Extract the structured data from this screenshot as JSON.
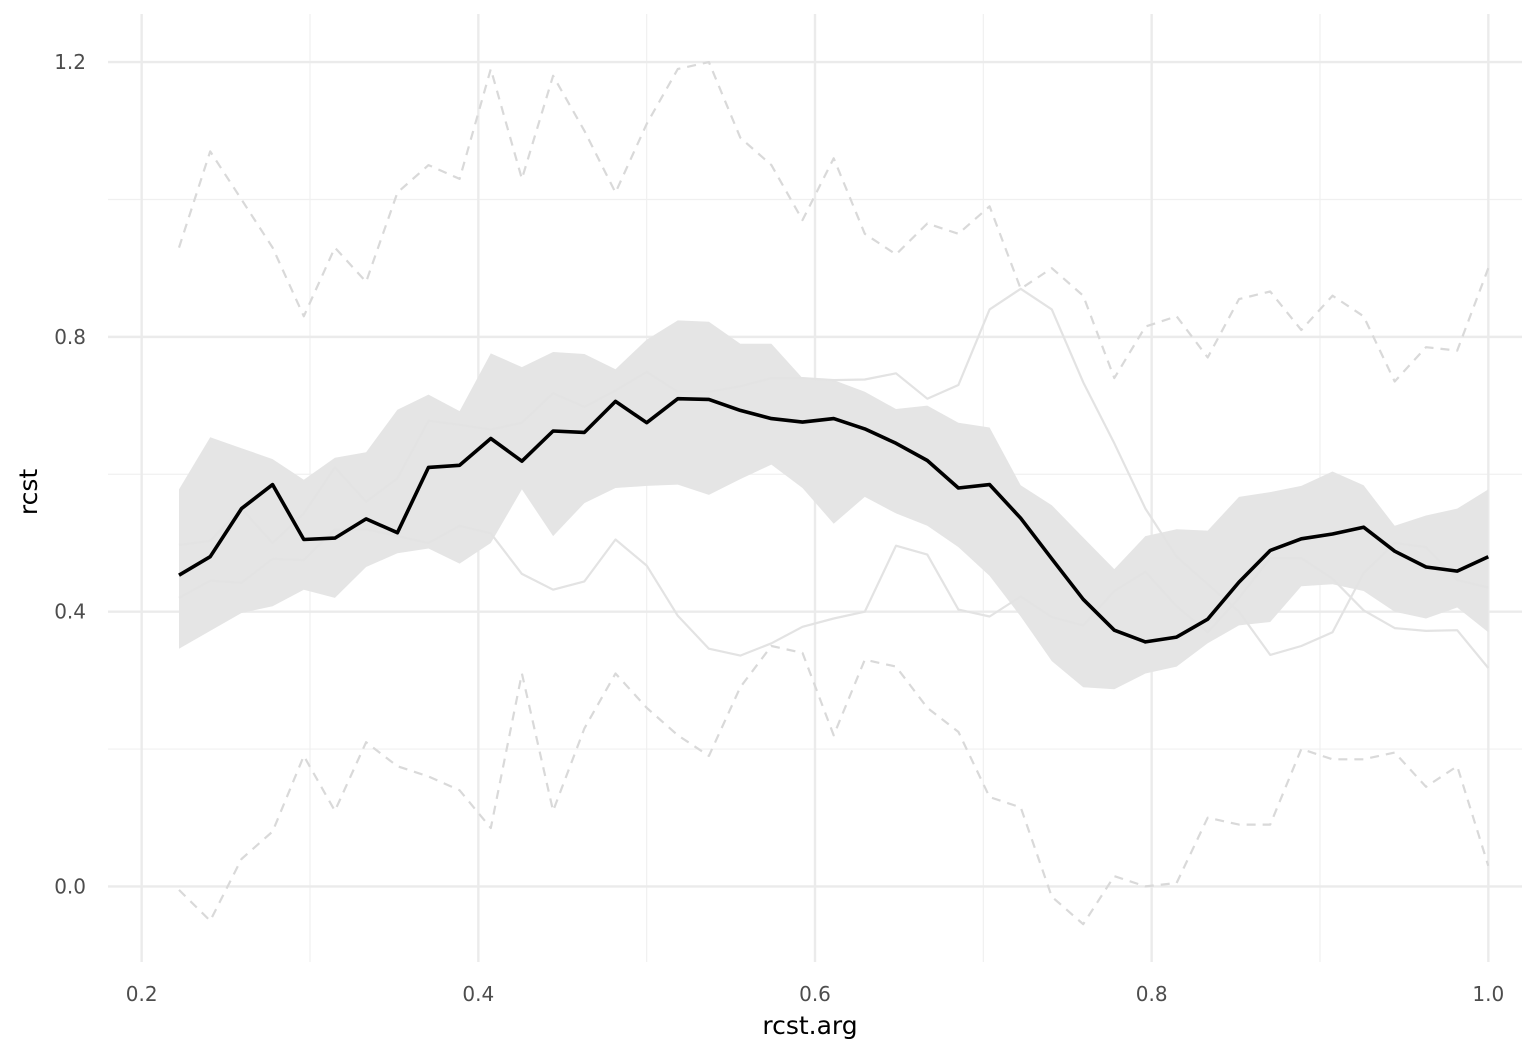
{
  "chart_data": {
    "type": "line",
    "xlabel": "rcst.arg",
    "ylabel": "rcst",
    "xlim": [
      0.18,
      1.02
    ],
    "ylim": [
      -0.11,
      1.27
    ],
    "x_ticks": [
      "0.2",
      "0.4",
      "0.6",
      "0.8",
      "1.0"
    ],
    "x_tick_values": [
      0.2,
      0.4,
      0.6,
      0.8,
      1.0
    ],
    "y_ticks": [
      "0.0",
      "0.4",
      "0.8",
      "1.2"
    ],
    "y_tick_values": [
      0.0,
      0.4,
      0.8,
      1.2
    ],
    "grid": true,
    "x": [
      0.2222,
      0.2407,
      0.2593,
      0.2778,
      0.2963,
      0.3148,
      0.3333,
      0.3519,
      0.3704,
      0.3889,
      0.4074,
      0.4259,
      0.4444,
      0.463,
      0.4815,
      0.5,
      0.5185,
      0.537,
      0.5556,
      0.5741,
      0.5926,
      0.6111,
      0.6296,
      0.6481,
      0.6667,
      0.6852,
      0.7037,
      0.7222,
      0.7407,
      0.7593,
      0.7778,
      0.7963,
      0.8148,
      0.8333,
      0.8519,
      0.8704,
      0.8889,
      0.9074,
      0.9259,
      0.9444,
      0.963,
      0.9815,
      1.0
    ],
    "series": [
      {
        "role": "envelope-band",
        "color": "#e5e5e5",
        "lower": [
          0.346,
          0.372,
          0.398,
          0.408,
          0.432,
          0.42,
          0.465,
          0.485,
          0.492,
          0.47,
          0.5,
          0.578,
          0.51,
          0.558,
          0.58,
          0.583,
          0.585,
          0.57,
          0.593,
          0.614,
          0.58,
          0.528,
          0.567,
          0.543,
          0.525,
          0.494,
          0.452,
          0.393,
          0.328,
          0.29,
          0.287,
          0.31,
          0.32,
          0.354,
          0.38,
          0.385,
          0.437,
          0.44,
          0.43,
          0.4,
          0.39,
          0.406,
          0.37
        ],
        "upper": [
          0.578,
          0.654,
          0.638,
          0.622,
          0.592,
          0.624,
          0.632,
          0.694,
          0.716,
          0.692,
          0.776,
          0.756,
          0.778,
          0.775,
          0.753,
          0.796,
          0.824,
          0.822,
          0.79,
          0.79,
          0.74,
          0.737,
          0.72,
          0.695,
          0.7,
          0.675,
          0.668,
          0.584,
          0.555,
          0.508,
          0.462,
          0.51,
          0.52,
          0.518,
          0.567,
          0.574,
          0.583,
          0.604,
          0.584,
          0.525,
          0.54,
          0.55,
          0.578
        ]
      },
      {
        "role": "simulation-solid-1",
        "color": "#e3e3e3",
        "values": [
          0.497,
          0.503,
          0.55,
          0.5,
          0.543,
          0.61,
          0.56,
          0.594,
          0.678,
          0.672,
          0.665,
          0.675,
          0.718,
          0.698,
          0.722,
          0.749,
          0.72,
          0.72,
          0.728,
          0.74,
          0.74,
          0.737,
          0.738,
          0.747,
          0.71,
          0.73,
          0.84,
          0.87,
          0.84,
          0.734,
          0.645,
          0.55,
          0.48,
          0.44,
          0.4,
          0.337,
          0.35,
          0.37,
          0.456,
          0.5,
          0.494,
          0.446,
          0.435
        ]
      },
      {
        "role": "simulation-solid-2",
        "color": "#e3e3e3",
        "values": [
          0.42,
          0.445,
          0.442,
          0.477,
          0.475,
          0.52,
          0.52,
          0.51,
          0.5,
          0.525,
          0.514,
          0.455,
          0.432,
          0.444,
          0.505,
          0.467,
          0.394,
          0.346,
          0.336,
          0.354,
          0.378,
          0.39,
          0.4,
          0.496,
          0.483,
          0.403,
          0.393,
          0.422,
          0.392,
          0.38,
          0.43,
          0.458,
          0.408,
          0.37,
          0.42,
          0.478,
          0.478,
          0.448,
          0.402,
          0.376,
          0.372,
          0.373,
          0.318
        ]
      },
      {
        "role": "upper-dashed",
        "color": "#d9d9d9",
        "values": [
          0.93,
          1.07,
          1.0,
          0.93,
          0.83,
          0.93,
          0.88,
          1.01,
          1.05,
          1.03,
          1.19,
          1.03,
          1.18,
          1.1,
          1.01,
          1.11,
          1.19,
          1.2,
          1.09,
          1.05,
          0.97,
          1.06,
          0.95,
          0.92,
          0.965,
          0.95,
          0.99,
          0.87,
          0.9,
          0.86,
          0.74,
          0.815,
          0.83,
          0.77,
          0.855,
          0.866,
          0.81,
          0.86,
          0.83,
          0.735,
          0.785,
          0.78,
          0.9
        ]
      },
      {
        "role": "lower-dashed",
        "color": "#d9d9d9",
        "values": [
          -0.005,
          -0.05,
          0.04,
          0.08,
          0.19,
          0.11,
          0.21,
          0.175,
          0.16,
          0.14,
          0.085,
          0.31,
          0.11,
          0.23,
          0.31,
          0.26,
          0.22,
          0.19,
          0.29,
          0.35,
          0.34,
          0.22,
          0.33,
          0.32,
          0.26,
          0.225,
          0.13,
          0.115,
          -0.015,
          -0.055,
          0.015,
          0.0,
          0.005,
          0.1,
          0.09,
          0.09,
          0.2,
          0.185,
          0.185,
          0.195,
          0.145,
          0.175,
          0.03
        ]
      },
      {
        "role": "observed",
        "color": "#000000",
        "values": [
          0.453,
          0.48,
          0.55,
          0.585,
          0.505,
          0.507,
          0.535,
          0.515,
          0.61,
          0.613,
          0.652,
          0.619,
          0.663,
          0.661,
          0.706,
          0.675,
          0.71,
          0.709,
          0.693,
          0.681,
          0.676,
          0.681,
          0.666,
          0.645,
          0.62,
          0.58,
          0.585,
          0.536,
          0.477,
          0.418,
          0.373,
          0.356,
          0.363,
          0.389,
          0.443,
          0.489,
          0.506,
          0.513,
          0.523,
          0.488,
          0.465,
          0.459,
          0.48
        ]
      }
    ]
  }
}
